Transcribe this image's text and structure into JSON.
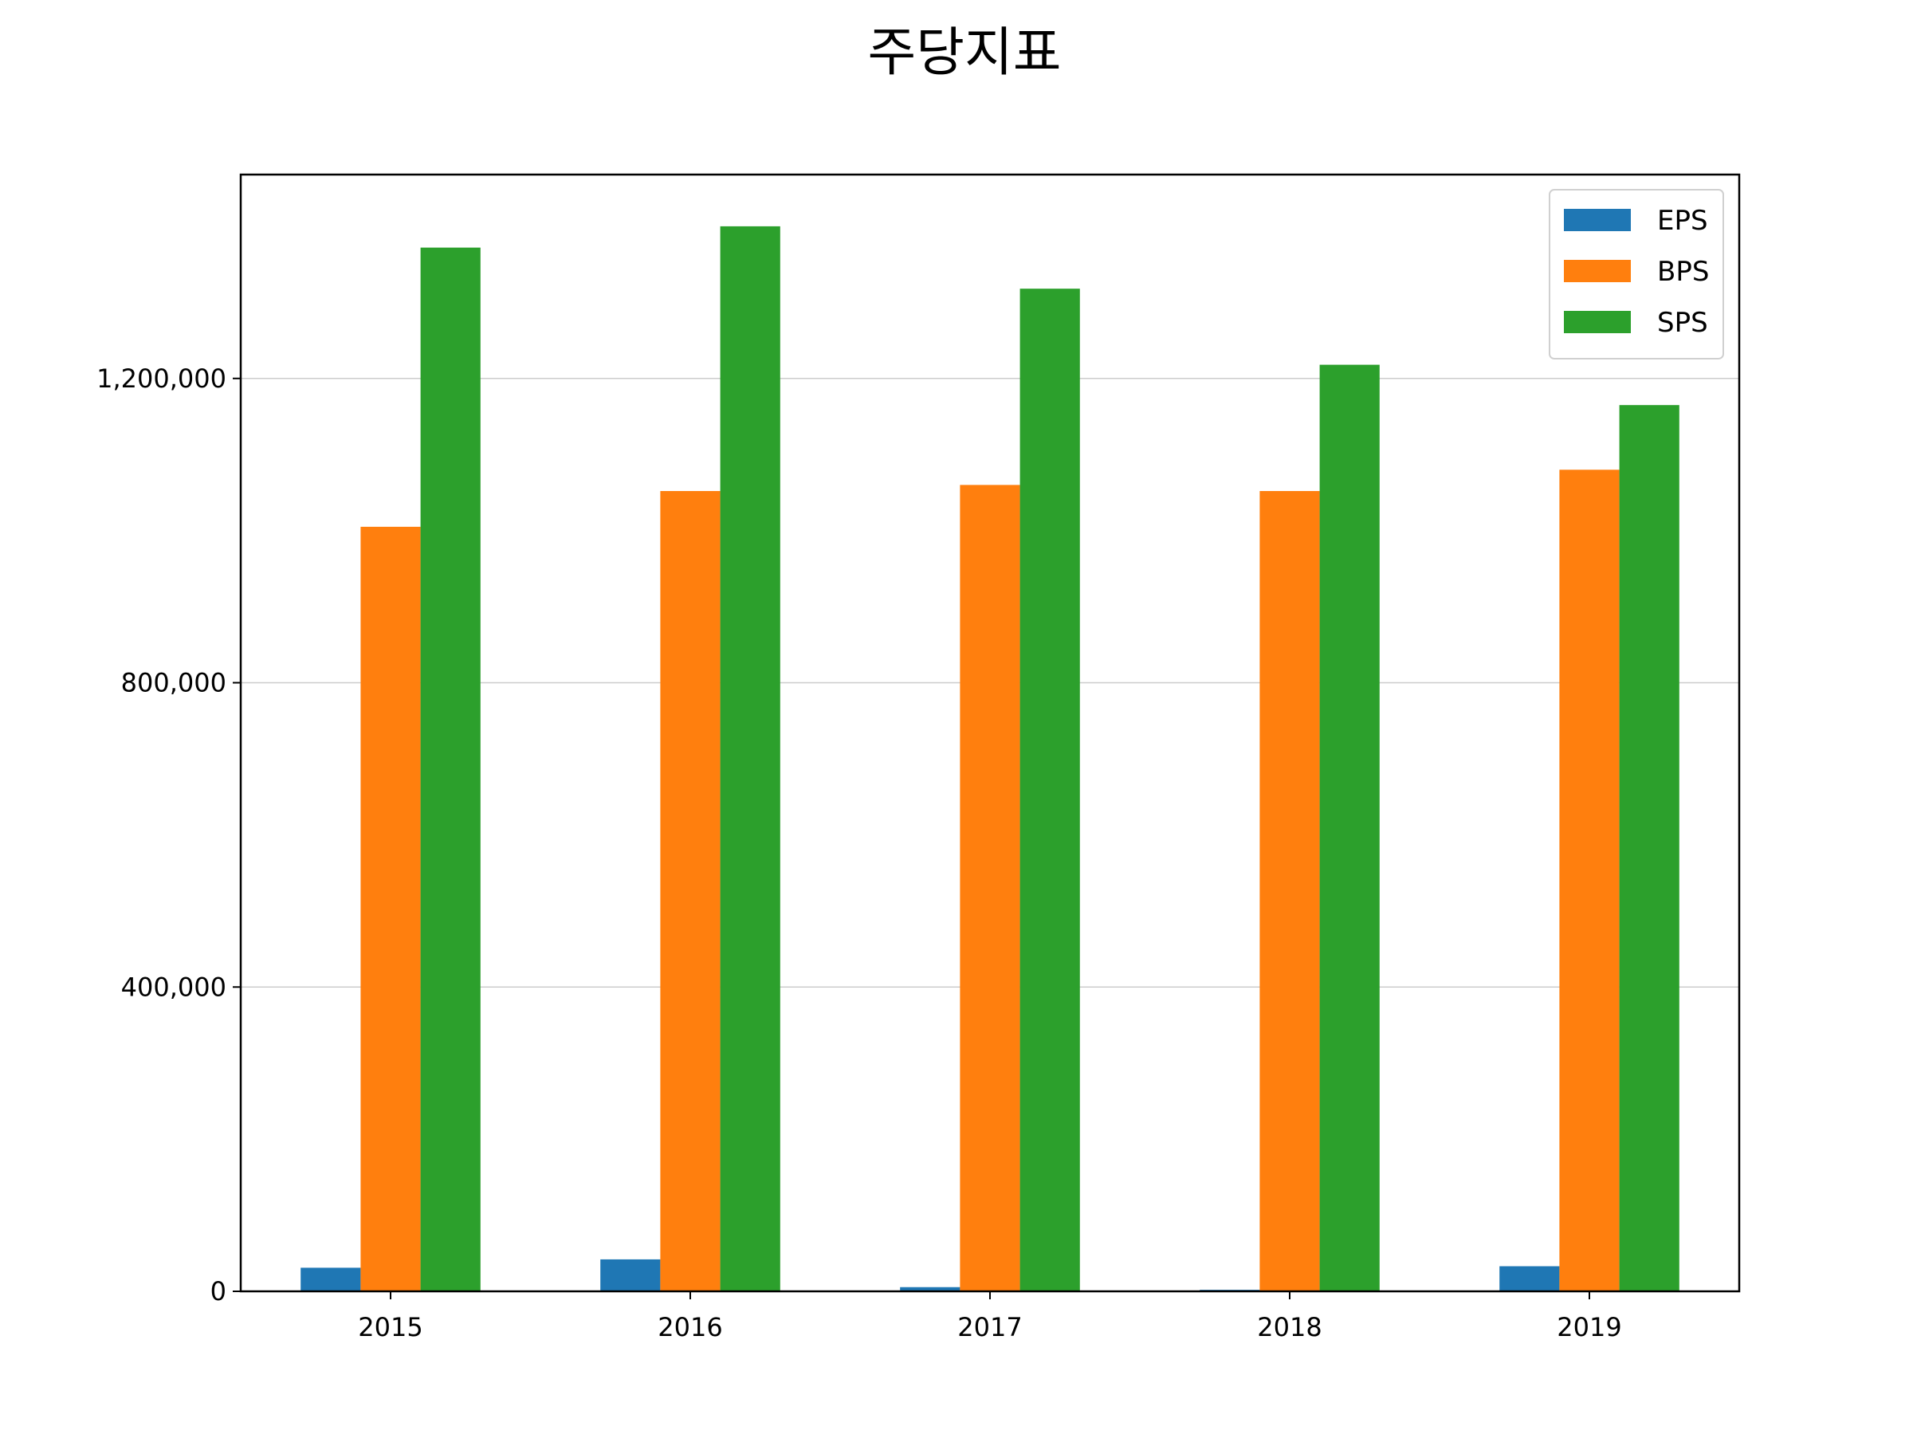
{
  "chart_data": {
    "type": "bar",
    "title": "주당지표",
    "categories": [
      "2015",
      "2016",
      "2017",
      "2018",
      "2019"
    ],
    "series": [
      {
        "name": "EPS",
        "color": "#1f77b4",
        "values": [
          31000,
          42000,
          5500,
          2000,
          33000
        ]
      },
      {
        "name": "BPS",
        "color": "#ff7f0e",
        "values": [
          1005000,
          1052000,
          1060000,
          1052000,
          1080000
        ]
      },
      {
        "name": "SPS",
        "color": "#2ca02c",
        "values": [
          1372000,
          1400000,
          1318000,
          1218000,
          1165000
        ]
      }
    ],
    "ylim": [
      0,
      1468000
    ],
    "yticks": [
      0,
      400000,
      800000,
      1200000
    ],
    "ytick_labels": [
      "0",
      "400,000",
      "800,000",
      "1,200,000"
    ],
    "xlabel": "",
    "ylabel": "",
    "grid": "y-major",
    "legend": "top-right"
  }
}
